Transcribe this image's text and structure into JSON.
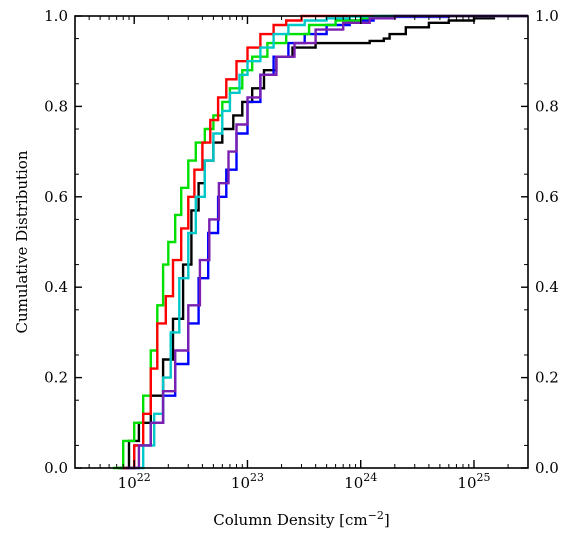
{
  "chart_data": {
    "type": "line",
    "title": "",
    "xlabel": "Column Density [cm$^{-2}$]",
    "xlabel_text": "Column Density [cm",
    "xlabel_unit_exponent": "−2",
    "xlabel_close": "]",
    "ylabel": "Cumulative Distribution",
    "xscale": "log",
    "xlim": [
      3e+21,
      3e+25
    ],
    "ylim": [
      0.0,
      1.0
    ],
    "x_tick_labels": [
      {
        "base": "10",
        "exp": "22",
        "value": 1e+22
      },
      {
        "base": "10",
        "exp": "23",
        "value": 1e+23
      },
      {
        "base": "10",
        "exp": "24",
        "value": 1e+24
      },
      {
        "base": "10",
        "exp": "25",
        "value": 1e+25
      }
    ],
    "y_tick_labels": [
      "0.0",
      "0.2",
      "0.4",
      "0.6",
      "0.8",
      "1.0"
    ],
    "y_tick_values": [
      0.0,
      0.2,
      0.4,
      0.6,
      0.8,
      1.0
    ],
    "right_y_tick_labels": [
      "0.0",
      "0.2",
      "0.4",
      "0.6",
      "0.8",
      "1.0"
    ],
    "grid": false,
    "legend": "none",
    "series": [
      {
        "color": "#000000",
        "x": [
          7.2e+21,
          9e+21,
          1.1e+22,
          1.4e+22,
          1.8e+22,
          2.2e+22,
          2.7e+22,
          3.2e+22,
          3.7e+22,
          4.2e+22,
          5e+22,
          6e+22,
          7.5e+22,
          9e+22,
          1.1e+23,
          1.4e+23,
          1.8e+23,
          2.5e+23,
          4e+23,
          7e+23,
          1.2e+24,
          1.6e+24,
          1.8e+24,
          2.5e+24,
          4e+24,
          6e+24,
          1e+25,
          1.5e+25,
          3e+25
        ],
        "y": [
          0.0,
          0.06,
          0.1,
          0.16,
          0.24,
          0.33,
          0.45,
          0.57,
          0.63,
          0.68,
          0.72,
          0.75,
          0.78,
          0.81,
          0.84,
          0.88,
          0.91,
          0.93,
          0.94,
          0.94,
          0.945,
          0.95,
          0.96,
          0.975,
          0.985,
          0.99,
          0.995,
          1.0,
          1.0
        ]
      },
      {
        "color": "#0000ff",
        "x": [
          7.5e+21,
          1e+22,
          1.4e+22,
          1.8e+22,
          2.3e+22,
          3e+22,
          3.7e+22,
          4.5e+22,
          5.5e+22,
          6.5e+22,
          8e+22,
          1e+23,
          1.3e+23,
          1.7e+23,
          2.3e+23,
          3.2e+23,
          5e+23,
          8e+23,
          1.3e+24,
          2e+24,
          6e+24
        ],
        "y": [
          0.0,
          0.05,
          0.1,
          0.16,
          0.23,
          0.32,
          0.42,
          0.52,
          0.6,
          0.66,
          0.74,
          0.81,
          0.87,
          0.91,
          0.94,
          0.96,
          0.98,
          0.99,
          0.995,
          0.998,
          1.0
        ]
      },
      {
        "color": "#00e000",
        "x": [
          6.5e+21,
          8e+21,
          1e+22,
          1.2e+22,
          1.4e+22,
          1.6e+22,
          1.8e+22,
          2e+22,
          2.3e+22,
          2.6e+22,
          3e+22,
          3.5e+22,
          4.2e+22,
          5e+22,
          6e+22,
          7e+22,
          9e+22,
          1.1e+23,
          1.5e+23,
          2.2e+23,
          3.5e+23,
          6e+23,
          1e+24,
          1.5e+24
        ],
        "y": [
          0.0,
          0.06,
          0.1,
          0.16,
          0.26,
          0.36,
          0.45,
          0.5,
          0.56,
          0.62,
          0.68,
          0.72,
          0.75,
          0.78,
          0.81,
          0.84,
          0.88,
          0.91,
          0.94,
          0.96,
          0.98,
          0.99,
          0.995,
          1.0
        ]
      },
      {
        "color": "#ff0000",
        "x": [
          8e+21,
          1e+22,
          1.2e+22,
          1.4e+22,
          1.6e+22,
          1.9e+22,
          2.2e+22,
          2.6e+22,
          3e+22,
          3.4e+22,
          4e+22,
          4.7e+22,
          5.5e+22,
          6.5e+22,
          8e+22,
          1e+23,
          1.3e+23,
          1.7e+23,
          2.2e+23,
          3e+23,
          4e+23
        ],
        "y": [
          0.0,
          0.05,
          0.12,
          0.22,
          0.32,
          0.38,
          0.46,
          0.53,
          0.6,
          0.66,
          0.72,
          0.77,
          0.82,
          0.86,
          0.9,
          0.93,
          0.96,
          0.98,
          0.99,
          1.0,
          1.0
        ]
      },
      {
        "color": "#00c8c8",
        "x": [
          9e+21,
          1.2e+22,
          1.5e+22,
          1.8e+22,
          2.1e+22,
          2.5e+22,
          3e+22,
          3.5e+22,
          4.2e+22,
          5e+22,
          6e+22,
          7e+22,
          8.5e+22,
          1e+23,
          1.3e+23,
          1.7e+23,
          2.3e+23,
          3.2e+23,
          5e+23,
          8e+23,
          1.3e+24
        ],
        "y": [
          0.0,
          0.05,
          0.12,
          0.2,
          0.3,
          0.42,
          0.52,
          0.6,
          0.68,
          0.74,
          0.79,
          0.83,
          0.87,
          0.9,
          0.93,
          0.96,
          0.98,
          0.99,
          0.995,
          0.999,
          1.0
        ]
      },
      {
        "color": "#7a20b0",
        "x": [
          8.5e+21,
          1.1e+22,
          1.4e+22,
          1.8e+22,
          2.3e+22,
          3e+22,
          3.8e+22,
          4.6e+22,
          5.6e+22,
          6.8e+22,
          8e+22,
          1e+23,
          1.3e+23,
          1.8e+23,
          2.6e+23,
          4e+23,
          7e+23,
          1.2e+24,
          2e+24
        ],
        "y": [
          0.0,
          0.05,
          0.1,
          0.17,
          0.26,
          0.36,
          0.46,
          0.55,
          0.63,
          0.7,
          0.76,
          0.82,
          0.87,
          0.91,
          0.94,
          0.97,
          0.985,
          0.995,
          1.0
        ]
      }
    ]
  }
}
